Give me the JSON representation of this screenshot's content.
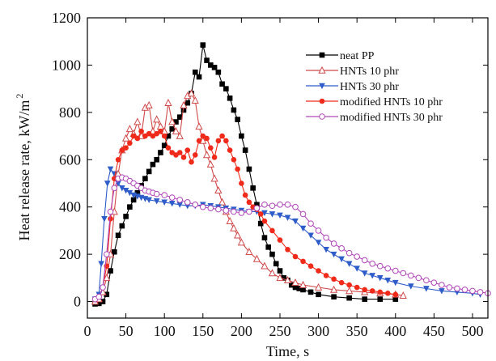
{
  "chart_data": {
    "type": "line",
    "xlabel": "Time, s",
    "ylabel": "Heat release rate, kW/m",
    "ylabel_superscript": "2",
    "xlim": [
      0,
      520
    ],
    "ylim": [
      -70,
      1200
    ],
    "x_ticks": [
      "0",
      "50",
      "100",
      "150",
      "200",
      "250",
      "300",
      "350",
      "400",
      "450",
      "500"
    ],
    "y_ticks": [
      "0",
      "200",
      "400",
      "600",
      "800",
      "1000",
      "1200"
    ],
    "legend_position": "top-right",
    "grid": false,
    "series": [
      {
        "name": "neat PP",
        "color": "#000000",
        "marker": "square-filled",
        "points": [
          [
            10,
            -10
          ],
          [
            15,
            -8
          ],
          [
            20,
            0
          ],
          [
            25,
            30
          ],
          [
            30,
            130
          ],
          [
            35,
            210
          ],
          [
            40,
            280
          ],
          [
            45,
            320
          ],
          [
            50,
            360
          ],
          [
            55,
            400
          ],
          [
            60,
            430
          ],
          [
            65,
            460
          ],
          [
            70,
            490
          ],
          [
            75,
            520
          ],
          [
            80,
            550
          ],
          [
            85,
            580
          ],
          [
            90,
            600
          ],
          [
            95,
            630
          ],
          [
            100,
            660
          ],
          [
            105,
            700
          ],
          [
            110,
            730
          ],
          [
            115,
            760
          ],
          [
            120,
            780
          ],
          [
            125,
            810
          ],
          [
            130,
            840
          ],
          [
            135,
            880
          ],
          [
            140,
            970
          ],
          [
            145,
            950
          ],
          [
            150,
            1085
          ],
          [
            155,
            1020
          ],
          [
            160,
            1000
          ],
          [
            165,
            990
          ],
          [
            170,
            970
          ],
          [
            175,
            920
          ],
          [
            180,
            900
          ],
          [
            185,
            860
          ],
          [
            190,
            810
          ],
          [
            195,
            770
          ],
          [
            200,
            700
          ],
          [
            205,
            640
          ],
          [
            210,
            560
          ],
          [
            215,
            480
          ],
          [
            220,
            410
          ],
          [
            225,
            330
          ],
          [
            230,
            270
          ],
          [
            235,
            230
          ],
          [
            240,
            200
          ],
          [
            245,
            160
          ],
          [
            250,
            130
          ],
          [
            255,
            100
          ],
          [
            260,
            90
          ],
          [
            265,
            70
          ],
          [
            270,
            60
          ],
          [
            275,
            55
          ],
          [
            280,
            50
          ],
          [
            290,
            40
          ],
          [
            300,
            30
          ],
          [
            320,
            20
          ],
          [
            340,
            15
          ],
          [
            360,
            10
          ],
          [
            380,
            10
          ],
          [
            400,
            10
          ]
        ]
      },
      {
        "name": "HNTs 10 phr",
        "color": "#d04a4a",
        "marker": "triangle-up-open",
        "points": [
          [
            10,
            0
          ],
          [
            15,
            10
          ],
          [
            20,
            40
          ],
          [
            25,
            100
          ],
          [
            30,
            200
          ],
          [
            35,
            380
          ],
          [
            40,
            540
          ],
          [
            45,
            640
          ],
          [
            50,
            690
          ],
          [
            55,
            730
          ],
          [
            60,
            710
          ],
          [
            65,
            760
          ],
          [
            70,
            700
          ],
          [
            75,
            820
          ],
          [
            80,
            830
          ],
          [
            85,
            720
          ],
          [
            90,
            770
          ],
          [
            95,
            740
          ],
          [
            100,
            720
          ],
          [
            105,
            840
          ],
          [
            110,
            760
          ],
          [
            115,
            720
          ],
          [
            120,
            700
          ],
          [
            125,
            830
          ],
          [
            130,
            870
          ],
          [
            135,
            880
          ],
          [
            140,
            850
          ],
          [
            145,
            740
          ],
          [
            150,
            680
          ],
          [
            155,
            620
          ],
          [
            160,
            580
          ],
          [
            165,
            520
          ],
          [
            170,
            470
          ],
          [
            175,
            420
          ],
          [
            180,
            380
          ],
          [
            185,
            340
          ],
          [
            190,
            310
          ],
          [
            195,
            280
          ],
          [
            200,
            250
          ],
          [
            210,
            210
          ],
          [
            220,
            180
          ],
          [
            230,
            150
          ],
          [
            240,
            120
          ],
          [
            250,
            100
          ],
          [
            260,
            90
          ],
          [
            270,
            80
          ],
          [
            280,
            70
          ],
          [
            300,
            60
          ],
          [
            320,
            50
          ],
          [
            340,
            45
          ],
          [
            360,
            40
          ],
          [
            380,
            35
          ],
          [
            400,
            30
          ],
          [
            410,
            25
          ]
        ]
      },
      {
        "name": "HNTs 30 phr",
        "color": "#2e5cc9",
        "marker": "triangle-down-filled",
        "points": [
          [
            10,
            10
          ],
          [
            15,
            30
          ],
          [
            18,
            160
          ],
          [
            22,
            350
          ],
          [
            26,
            500
          ],
          [
            30,
            560
          ],
          [
            35,
            540
          ],
          [
            40,
            500
          ],
          [
            45,
            480
          ],
          [
            50,
            470
          ],
          [
            55,
            460
          ],
          [
            60,
            450
          ],
          [
            65,
            445
          ],
          [
            70,
            440
          ],
          [
            75,
            435
          ],
          [
            80,
            430
          ],
          [
            90,
            425
          ],
          [
            100,
            420
          ],
          [
            110,
            415
          ],
          [
            120,
            410
          ],
          [
            130,
            405
          ],
          [
            140,
            405
          ],
          [
            150,
            410
          ],
          [
            160,
            405
          ],
          [
            170,
            400
          ],
          [
            180,
            395
          ],
          [
            190,
            390
          ],
          [
            200,
            385
          ],
          [
            210,
            380
          ],
          [
            220,
            380
          ],
          [
            230,
            375
          ],
          [
            240,
            370
          ],
          [
            250,
            365
          ],
          [
            260,
            355
          ],
          [
            270,
            340
          ],
          [
            280,
            310
          ],
          [
            290,
            280
          ],
          [
            300,
            250
          ],
          [
            310,
            220
          ],
          [
            320,
            200
          ],
          [
            330,
            180
          ],
          [
            340,
            160
          ],
          [
            350,
            140
          ],
          [
            360,
            120
          ],
          [
            370,
            110
          ],
          [
            380,
            100
          ],
          [
            390,
            90
          ],
          [
            400,
            80
          ],
          [
            420,
            65
          ],
          [
            440,
            55
          ],
          [
            460,
            45
          ],
          [
            480,
            40
          ],
          [
            500,
            35
          ],
          [
            510,
            30
          ]
        ]
      },
      {
        "name": "modified HNTs 10 phr",
        "color": "#f02a1a",
        "marker": "circle-filled",
        "points": [
          [
            10,
            10
          ],
          [
            15,
            20
          ],
          [
            20,
            60
          ],
          [
            25,
            150
          ],
          [
            30,
            350
          ],
          [
            35,
            520
          ],
          [
            40,
            600
          ],
          [
            45,
            640
          ],
          [
            50,
            650
          ],
          [
            55,
            670
          ],
          [
            60,
            700
          ],
          [
            65,
            690
          ],
          [
            70,
            720
          ],
          [
            75,
            700
          ],
          [
            80,
            710
          ],
          [
            85,
            700
          ],
          [
            90,
            710
          ],
          [
            95,
            720
          ],
          [
            100,
            700
          ],
          [
            105,
            650
          ],
          [
            110,
            630
          ],
          [
            115,
            620
          ],
          [
            120,
            630
          ],
          [
            125,
            610
          ],
          [
            130,
            640
          ],
          [
            135,
            590
          ],
          [
            140,
            620
          ],
          [
            145,
            680
          ],
          [
            150,
            700
          ],
          [
            155,
            690
          ],
          [
            160,
            650
          ],
          [
            165,
            610
          ],
          [
            170,
            680
          ],
          [
            175,
            700
          ],
          [
            180,
            680
          ],
          [
            185,
            640
          ],
          [
            190,
            600
          ],
          [
            195,
            560
          ],
          [
            200,
            500
          ],
          [
            205,
            450
          ],
          [
            210,
            420
          ],
          [
            215,
            400
          ],
          [
            220,
            390
          ],
          [
            225,
            370
          ],
          [
            230,
            340
          ],
          [
            240,
            300
          ],
          [
            250,
            260
          ],
          [
            260,
            220
          ],
          [
            270,
            190
          ],
          [
            280,
            170
          ],
          [
            290,
            150
          ],
          [
            300,
            130
          ],
          [
            310,
            110
          ],
          [
            320,
            95
          ],
          [
            330,
            80
          ],
          [
            340,
            70
          ],
          [
            350,
            60
          ],
          [
            360,
            50
          ],
          [
            370,
            45
          ],
          [
            380,
            40
          ],
          [
            390,
            35
          ],
          [
            400,
            30
          ]
        ]
      },
      {
        "name": "modified HNTs 30 phr",
        "color": "#b047b8",
        "marker": "circle-open",
        "points": [
          [
            10,
            10
          ],
          [
            15,
            20
          ],
          [
            20,
            60
          ],
          [
            25,
            200
          ],
          [
            30,
            380
          ],
          [
            35,
            480
          ],
          [
            40,
            520
          ],
          [
            45,
            525
          ],
          [
            50,
            520
          ],
          [
            55,
            510
          ],
          [
            60,
            500
          ],
          [
            65,
            490
          ],
          [
            70,
            480
          ],
          [
            75,
            470
          ],
          [
            80,
            465
          ],
          [
            85,
            460
          ],
          [
            90,
            455
          ],
          [
            100,
            450
          ],
          [
            110,
            440
          ],
          [
            120,
            430
          ],
          [
            130,
            420
          ],
          [
            140,
            410
          ],
          [
            150,
            400
          ],
          [
            160,
            395
          ],
          [
            170,
            390
          ],
          [
            180,
            385
          ],
          [
            190,
            380
          ],
          [
            200,
            375
          ],
          [
            210,
            380
          ],
          [
            220,
            395
          ],
          [
            230,
            410
          ],
          [
            240,
            405
          ],
          [
            250,
            410
          ],
          [
            260,
            410
          ],
          [
            270,
            400
          ],
          [
            280,
            370
          ],
          [
            290,
            330
          ],
          [
            300,
            300
          ],
          [
            310,
            270
          ],
          [
            320,
            245
          ],
          [
            330,
            225
          ],
          [
            340,
            205
          ],
          [
            350,
            190
          ],
          [
            360,
            175
          ],
          [
            370,
            160
          ],
          [
            380,
            150
          ],
          [
            390,
            140
          ],
          [
            400,
            130
          ],
          [
            410,
            120
          ],
          [
            420,
            110
          ],
          [
            430,
            100
          ],
          [
            440,
            90
          ],
          [
            450,
            80
          ],
          [
            460,
            70
          ],
          [
            470,
            60
          ],
          [
            480,
            55
          ],
          [
            490,
            50
          ],
          [
            500,
            45
          ],
          [
            510,
            40
          ],
          [
            520,
            35
          ]
        ]
      }
    ]
  }
}
